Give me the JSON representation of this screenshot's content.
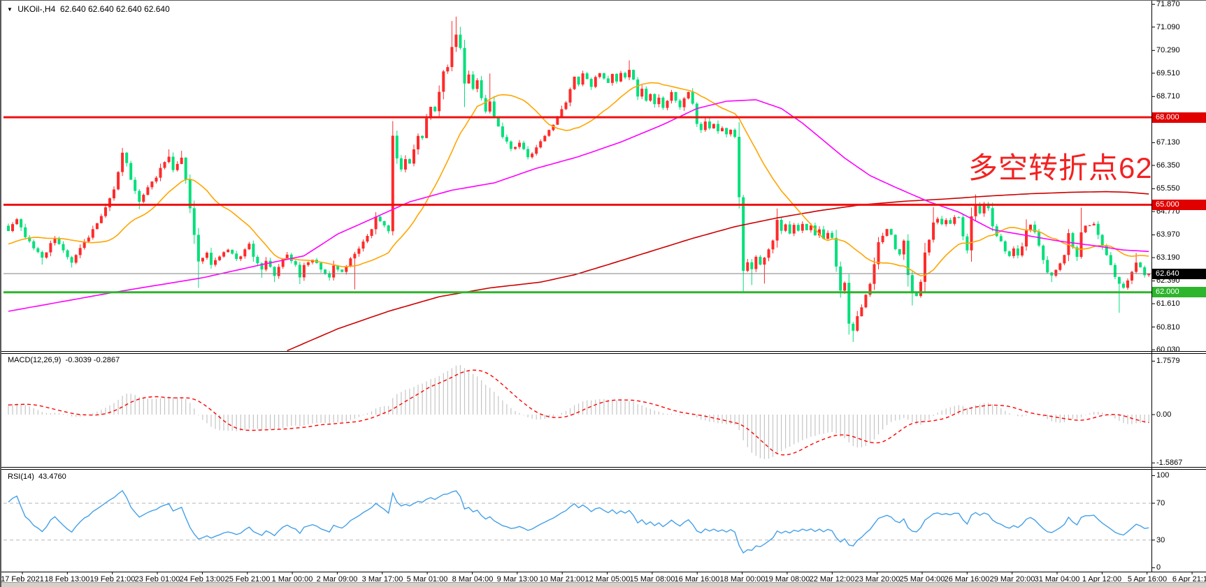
{
  "header": {
    "symbol": "UKOil-,H4",
    "quotes": "62.640 62.640 62.640 62.640",
    "dropdown_icon": "▼"
  },
  "annotation": {
    "text": "多空转折点62",
    "color": "#f22222"
  },
  "price_axis": {
    "ticks": [
      "71.870",
      "71.090",
      "70.290",
      "69.510",
      "68.710",
      "67.930",
      "67.130",
      "66.350",
      "65.550",
      "64.770",
      "63.970",
      "63.190",
      "62.390",
      "61.610",
      "60.810",
      "60.030"
    ],
    "badges": [
      {
        "label": "68.000",
        "bg": "#e00000",
        "price": 68.0
      },
      {
        "label": "65.000",
        "bg": "#e00000",
        "price": 65.0
      },
      {
        "label": "62.640",
        "bg": "#000000",
        "price": 62.64
      },
      {
        "label": "62.000",
        "bg": "#2db52d",
        "price": 62.0
      }
    ]
  },
  "hlines": [
    {
      "price": 68.0,
      "color": "#ee1111",
      "w": 3
    },
    {
      "price": 65.0,
      "color": "#ee1111",
      "w": 3
    },
    {
      "price": 62.64,
      "color": "#808080",
      "w": 1
    },
    {
      "price": 62.0,
      "color": "#2db52d",
      "w": 3
    }
  ],
  "time_axis": {
    "labels": [
      "17 Feb 2021",
      "18 Feb 13:00",
      "19 Feb 21:00",
      "23 Feb 01:00",
      "24 Feb 13:00",
      "25 Feb 21:00",
      "1 Mar 00:00",
      "2 Mar 09:00",
      "3 Mar 17:00",
      "5 Mar 01:00",
      "8 Mar 04:00",
      "9 Mar 13:00",
      "10 Mar 21:00",
      "12 Mar 05:00",
      "15 Mar 08:00",
      "16 Mar 16:00",
      "18 Mar 00:00",
      "19 Mar 08:00",
      "22 Mar 12:00",
      "23 Mar 20:00",
      "25 Mar 04:00",
      "26 Mar 16:00",
      "29 Mar 20:00",
      "31 Mar 04:00",
      "1 Apr 12:00",
      "5 Apr 16:00",
      "6 Apr 21:15"
    ]
  },
  "macd_panel": {
    "label": "MACD(12,26,9)",
    "values": "-0.3039 -0.2867",
    "axis": [
      {
        "label": "1.7579",
        "v": 1.7579
      },
      {
        "label": "0.00",
        "v": 0.0
      },
      {
        "label": "-1.5867",
        "v": -1.5867
      }
    ],
    "params": {
      "fast": 12,
      "slow": 26,
      "signal": 9
    }
  },
  "rsi_panel": {
    "label": "RSI(14)",
    "value": "43.4760",
    "period": 14,
    "axis": [
      {
        "label": "100",
        "v": 100
      },
      {
        "label": "70",
        "v": 70
      },
      {
        "label": "30",
        "v": 30
      },
      {
        "label": "0",
        "v": 0
      }
    ],
    "levels": [
      70,
      30
    ]
  },
  "chart_data": {
    "type": "candlestick",
    "symbol": "UKOil",
    "timeframe": "H4",
    "bars": 271,
    "price_range": {
      "max": 71.87,
      "min": 60.03
    },
    "close_path": [
      [
        0,
        64.1
      ],
      [
        2,
        64.5
      ],
      [
        4,
        63.9
      ],
      [
        6,
        63.55
      ],
      [
        8,
        63.15
      ],
      [
        11,
        63.9
      ],
      [
        13,
        63.4
      ],
      [
        15,
        63.0
      ],
      [
        17,
        63.5
      ],
      [
        19,
        63.9
      ],
      [
        21,
        64.4
      ],
      [
        23,
        64.9
      ],
      [
        25,
        65.5
      ],
      [
        27,
        66.8
      ],
      [
        28,
        66.45
      ],
      [
        29,
        65.9
      ],
      [
        31,
        65.1
      ],
      [
        33,
        65.6
      ],
      [
        35,
        65.95
      ],
      [
        37,
        66.5
      ],
      [
        38,
        66.65
      ],
      [
        39,
        66.2
      ],
      [
        41,
        66.6
      ],
      [
        42,
        65.9
      ],
      [
        43,
        64.9
      ],
      [
        44,
        64.0
      ],
      [
        45,
        63.1
      ],
      [
        47,
        63.35
      ],
      [
        48,
        62.95
      ],
      [
        50,
        63.2
      ],
      [
        52,
        63.5
      ],
      [
        54,
        63.1
      ],
      [
        56,
        63.45
      ],
      [
        57,
        63.65
      ],
      [
        58,
        63.2
      ],
      [
        60,
        62.8
      ],
      [
        61,
        63.1
      ],
      [
        63,
        62.6
      ],
      [
        64,
        62.9
      ],
      [
        66,
        63.3
      ],
      [
        68,
        62.9
      ],
      [
        69,
        62.5
      ],
      [
        70,
        62.9
      ],
      [
        72,
        63.15
      ],
      [
        74,
        62.8
      ],
      [
        76,
        62.55
      ],
      [
        77,
        62.95
      ],
      [
        79,
        62.7
      ],
      [
        81,
        63.15
      ],
      [
        82,
        63.3
      ],
      [
        84,
        63.7
      ],
      [
        86,
        64.2
      ],
      [
        87,
        64.55
      ],
      [
        89,
        64.25
      ],
      [
        90,
        64.05
      ],
      [
        91,
        67.33
      ],
      [
        92,
        66.6
      ],
      [
        93,
        66.25
      ],
      [
        94,
        66.6
      ],
      [
        95,
        66.4
      ],
      [
        96,
        66.9
      ],
      [
        97,
        67.4
      ],
      [
        98,
        67.25
      ],
      [
        99,
        67.95
      ],
      [
        100,
        68.4
      ],
      [
        101,
        68.2
      ],
      [
        102,
        68.9
      ],
      [
        103,
        69.55
      ],
      [
        104,
        69.7
      ],
      [
        105,
        70.4
      ],
      [
        106,
        70.85
      ],
      [
        107,
        70.35
      ],
      [
        108,
        69.2
      ],
      [
        109,
        69.5
      ],
      [
        110,
        68.95
      ],
      [
        111,
        69.3
      ],
      [
        112,
        68.65
      ],
      [
        113,
        68.15
      ],
      [
        114,
        68.5
      ],
      [
        115,
        68.0
      ],
      [
        116,
        67.7
      ],
      [
        117,
        67.35
      ],
      [
        119,
        66.9
      ],
      [
        121,
        67.15
      ],
      [
        123,
        66.6
      ],
      [
        125,
        66.95
      ],
      [
        127,
        67.35
      ],
      [
        129,
        67.75
      ],
      [
        131,
        68.25
      ],
      [
        132,
        68.55
      ],
      [
        133,
        69.0
      ],
      [
        134,
        69.35
      ],
      [
        135,
        69.15
      ],
      [
        136,
        69.5
      ],
      [
        137,
        69.3
      ],
      [
        138,
        69.05
      ],
      [
        139,
        69.35
      ],
      [
        140,
        69.55
      ],
      [
        141,
        69.3
      ],
      [
        142,
        69.15
      ],
      [
        143,
        69.45
      ],
      [
        144,
        69.25
      ],
      [
        145,
        69.5
      ],
      [
        146,
        69.35
      ],
      [
        147,
        69.65
      ],
      [
        148,
        69.3
      ],
      [
        149,
        68.7
      ],
      [
        150,
        68.95
      ],
      [
        151,
        68.55
      ],
      [
        152,
        68.8
      ],
      [
        153,
        68.45
      ],
      [
        154,
        68.65
      ],
      [
        155,
        68.3
      ],
      [
        156,
        68.55
      ],
      [
        157,
        68.85
      ],
      [
        158,
        68.6
      ],
      [
        159,
        68.3
      ],
      [
        160,
        68.65
      ],
      [
        161,
        68.9
      ],
      [
        162,
        68.5
      ],
      [
        163,
        67.8
      ],
      [
        164,
        67.55
      ],
      [
        165,
        67.85
      ],
      [
        166,
        67.6
      ],
      [
        167,
        67.75
      ],
      [
        168,
        67.5
      ],
      [
        169,
        67.65
      ],
      [
        170,
        67.4
      ],
      [
        171,
        67.55
      ],
      [
        172,
        67.3
      ],
      [
        173,
        65.3
      ],
      [
        174,
        62.7
      ],
      [
        175,
        63.0
      ],
      [
        176,
        62.8
      ],
      [
        177,
        63.2
      ],
      [
        178,
        62.95
      ],
      [
        179,
        63.15
      ],
      [
        180,
        63.45
      ],
      [
        181,
        63.8
      ],
      [
        182,
        64.5
      ],
      [
        183,
        64.1
      ],
      [
        184,
        64.35
      ],
      [
        185,
        64.05
      ],
      [
        186,
        64.3
      ],
      [
        187,
        64.15
      ],
      [
        188,
        64.35
      ],
      [
        189,
        64.1
      ],
      [
        190,
        64.25
      ],
      [
        191,
        63.95
      ],
      [
        192,
        64.15
      ],
      [
        193,
        63.85
      ],
      [
        194,
        64.05
      ],
      [
        195,
        63.85
      ],
      [
        196,
        62.9
      ],
      [
        197,
        62.1
      ],
      [
        198,
        62.35
      ],
      [
        199,
        60.9
      ],
      [
        200,
        60.7
      ],
      [
        201,
        61.15
      ],
      [
        202,
        61.5
      ],
      [
        203,
        61.9
      ],
      [
        204,
        62.3
      ],
      [
        205,
        63.0
      ],
      [
        206,
        63.7
      ],
      [
        207,
        63.95
      ],
      [
        208,
        64.15
      ],
      [
        209,
        63.95
      ],
      [
        210,
        63.5
      ],
      [
        211,
        63.3
      ],
      [
        212,
        63.75
      ],
      [
        213,
        62.6
      ],
      [
        214,
        62.0
      ],
      [
        215,
        61.85
      ],
      [
        216,
        62.4
      ],
      [
        217,
        63.35
      ],
      [
        218,
        63.8
      ],
      [
        219,
        64.35
      ],
      [
        220,
        64.5
      ],
      [
        221,
        64.3
      ],
      [
        222,
        64.5
      ],
      [
        223,
        64.35
      ],
      [
        224,
        64.55
      ],
      [
        225,
        64.6
      ],
      [
        226,
        63.9
      ],
      [
        227,
        63.45
      ],
      [
        228,
        64.6
      ],
      [
        229,
        65.0
      ],
      [
        230,
        64.75
      ],
      [
        231,
        65.0
      ],
      [
        232,
        64.9
      ],
      [
        233,
        64.3
      ],
      [
        234,
        63.9
      ],
      [
        235,
        63.75
      ],
      [
        236,
        63.4
      ],
      [
        237,
        63.25
      ],
      [
        238,
        63.5
      ],
      [
        239,
        63.3
      ],
      [
        240,
        63.55
      ],
      [
        241,
        64.15
      ],
      [
        242,
        64.3
      ],
      [
        243,
        64.05
      ],
      [
        244,
        63.6
      ],
      [
        245,
        63.1
      ],
      [
        246,
        62.7
      ],
      [
        247,
        62.55
      ],
      [
        248,
        62.8
      ],
      [
        249,
        62.95
      ],
      [
        250,
        63.3
      ],
      [
        251,
        64.0
      ],
      [
        252,
        63.5
      ],
      [
        253,
        63.2
      ],
      [
        254,
        64.1
      ],
      [
        255,
        64.25
      ],
      [
        256,
        64.3
      ],
      [
        257,
        64.35
      ],
      [
        258,
        64.0
      ],
      [
        259,
        63.6
      ],
      [
        260,
        63.3
      ],
      [
        261,
        62.9
      ],
      [
        262,
        62.5
      ],
      [
        263,
        62.25
      ],
      [
        264,
        62.15
      ],
      [
        265,
        62.4
      ],
      [
        266,
        62.7
      ],
      [
        267,
        63.0
      ],
      [
        268,
        62.85
      ],
      [
        269,
        62.55
      ],
      [
        270,
        62.64
      ]
    ],
    "wick_overrides": [
      [
        8,
        "l",
        62.95
      ],
      [
        15,
        "l",
        62.85
      ],
      [
        27,
        "h",
        66.95
      ],
      [
        31,
        "l",
        64.85
      ],
      [
        38,
        "h",
        66.9
      ],
      [
        41,
        "h",
        66.85
      ],
      [
        45,
        "l",
        62.15
      ],
      [
        60,
        "l",
        62.5
      ],
      [
        63,
        "l",
        62.35
      ],
      [
        69,
        "l",
        62.28
      ],
      [
        76,
        "l",
        62.4
      ],
      [
        82,
        "l",
        62.1
      ],
      [
        87,
        "h",
        64.75
      ],
      [
        105,
        "h",
        71.3
      ],
      [
        106,
        "h",
        71.45
      ],
      [
        107,
        "h",
        71.1
      ],
      [
        108,
        "l",
        68.35
      ],
      [
        114,
        "h",
        69.5
      ],
      [
        147,
        "h",
        69.95
      ],
      [
        174,
        "l",
        62.0
      ],
      [
        176,
        "l",
        62.25
      ],
      [
        179,
        "l",
        62.3
      ],
      [
        182,
        "h",
        64.87
      ],
      [
        199,
        "l",
        60.55
      ],
      [
        200,
        "l",
        60.3
      ],
      [
        214,
        "l",
        61.55
      ],
      [
        219,
        "h",
        64.92
      ],
      [
        229,
        "h",
        65.35
      ],
      [
        232,
        "h",
        65.1
      ],
      [
        241,
        "h",
        64.5
      ],
      [
        247,
        "l",
        62.35
      ],
      [
        254,
        "h",
        64.9
      ],
      [
        263,
        "l",
        61.3
      ],
      [
        267,
        "h",
        63.35
      ]
    ],
    "ma_fast_period": 21,
    "ma_mid_anchors": [
      [
        0,
        61.35
      ],
      [
        25,
        62.0
      ],
      [
        46,
        62.5
      ],
      [
        60,
        62.95
      ],
      [
        70,
        63.25
      ],
      [
        78,
        64.0
      ],
      [
        85,
        64.45
      ],
      [
        95,
        65.1
      ],
      [
        105,
        65.5
      ],
      [
        115,
        65.75
      ],
      [
        125,
        66.25
      ],
      [
        135,
        66.65
      ],
      [
        145,
        67.15
      ],
      [
        155,
        67.75
      ],
      [
        163,
        68.3
      ],
      [
        170,
        68.55
      ],
      [
        177,
        68.6
      ],
      [
        183,
        68.3
      ],
      [
        188,
        67.8
      ],
      [
        193,
        67.2
      ],
      [
        198,
        66.6
      ],
      [
        204,
        66.0
      ],
      [
        210,
        65.6
      ],
      [
        218,
        65.1
      ],
      [
        225,
        64.75
      ],
      [
        233,
        64.15
      ],
      [
        241,
        63.95
      ],
      [
        249,
        63.75
      ],
      [
        257,
        63.6
      ],
      [
        264,
        63.45
      ],
      [
        270,
        63.4
      ]
    ],
    "ma_slow_anchors": [
      [
        66,
        60.0
      ],
      [
        78,
        60.75
      ],
      [
        90,
        61.35
      ],
      [
        102,
        61.85
      ],
      [
        114,
        62.15
      ],
      [
        126,
        62.35
      ],
      [
        134,
        62.6
      ],
      [
        142,
        62.95
      ],
      [
        152,
        63.4
      ],
      [
        162,
        63.85
      ],
      [
        172,
        64.25
      ],
      [
        182,
        64.55
      ],
      [
        192,
        64.8
      ],
      [
        202,
        65.0
      ],
      [
        212,
        65.12
      ],
      [
        222,
        65.2
      ],
      [
        232,
        65.3
      ],
      [
        242,
        65.38
      ],
      [
        252,
        65.43
      ],
      [
        260,
        65.45
      ],
      [
        265,
        65.43
      ],
      [
        270,
        65.37
      ]
    ],
    "prehistory": {
      "bars": 40,
      "from": 62.1,
      "to": 64.1
    },
    "colors": {
      "up": "#ff2a2a",
      "down": "#00df7a",
      "ma_fast": "#ffa500",
      "ma_mid": "#ff00ff",
      "ma_slow": "#cc0000",
      "macd_bar": "#c4c4c4",
      "macd_signal": "#ff0000",
      "rsi": "#44a0e8",
      "level_dash": "#b5b5b5",
      "axis_line": "#000000"
    }
  }
}
